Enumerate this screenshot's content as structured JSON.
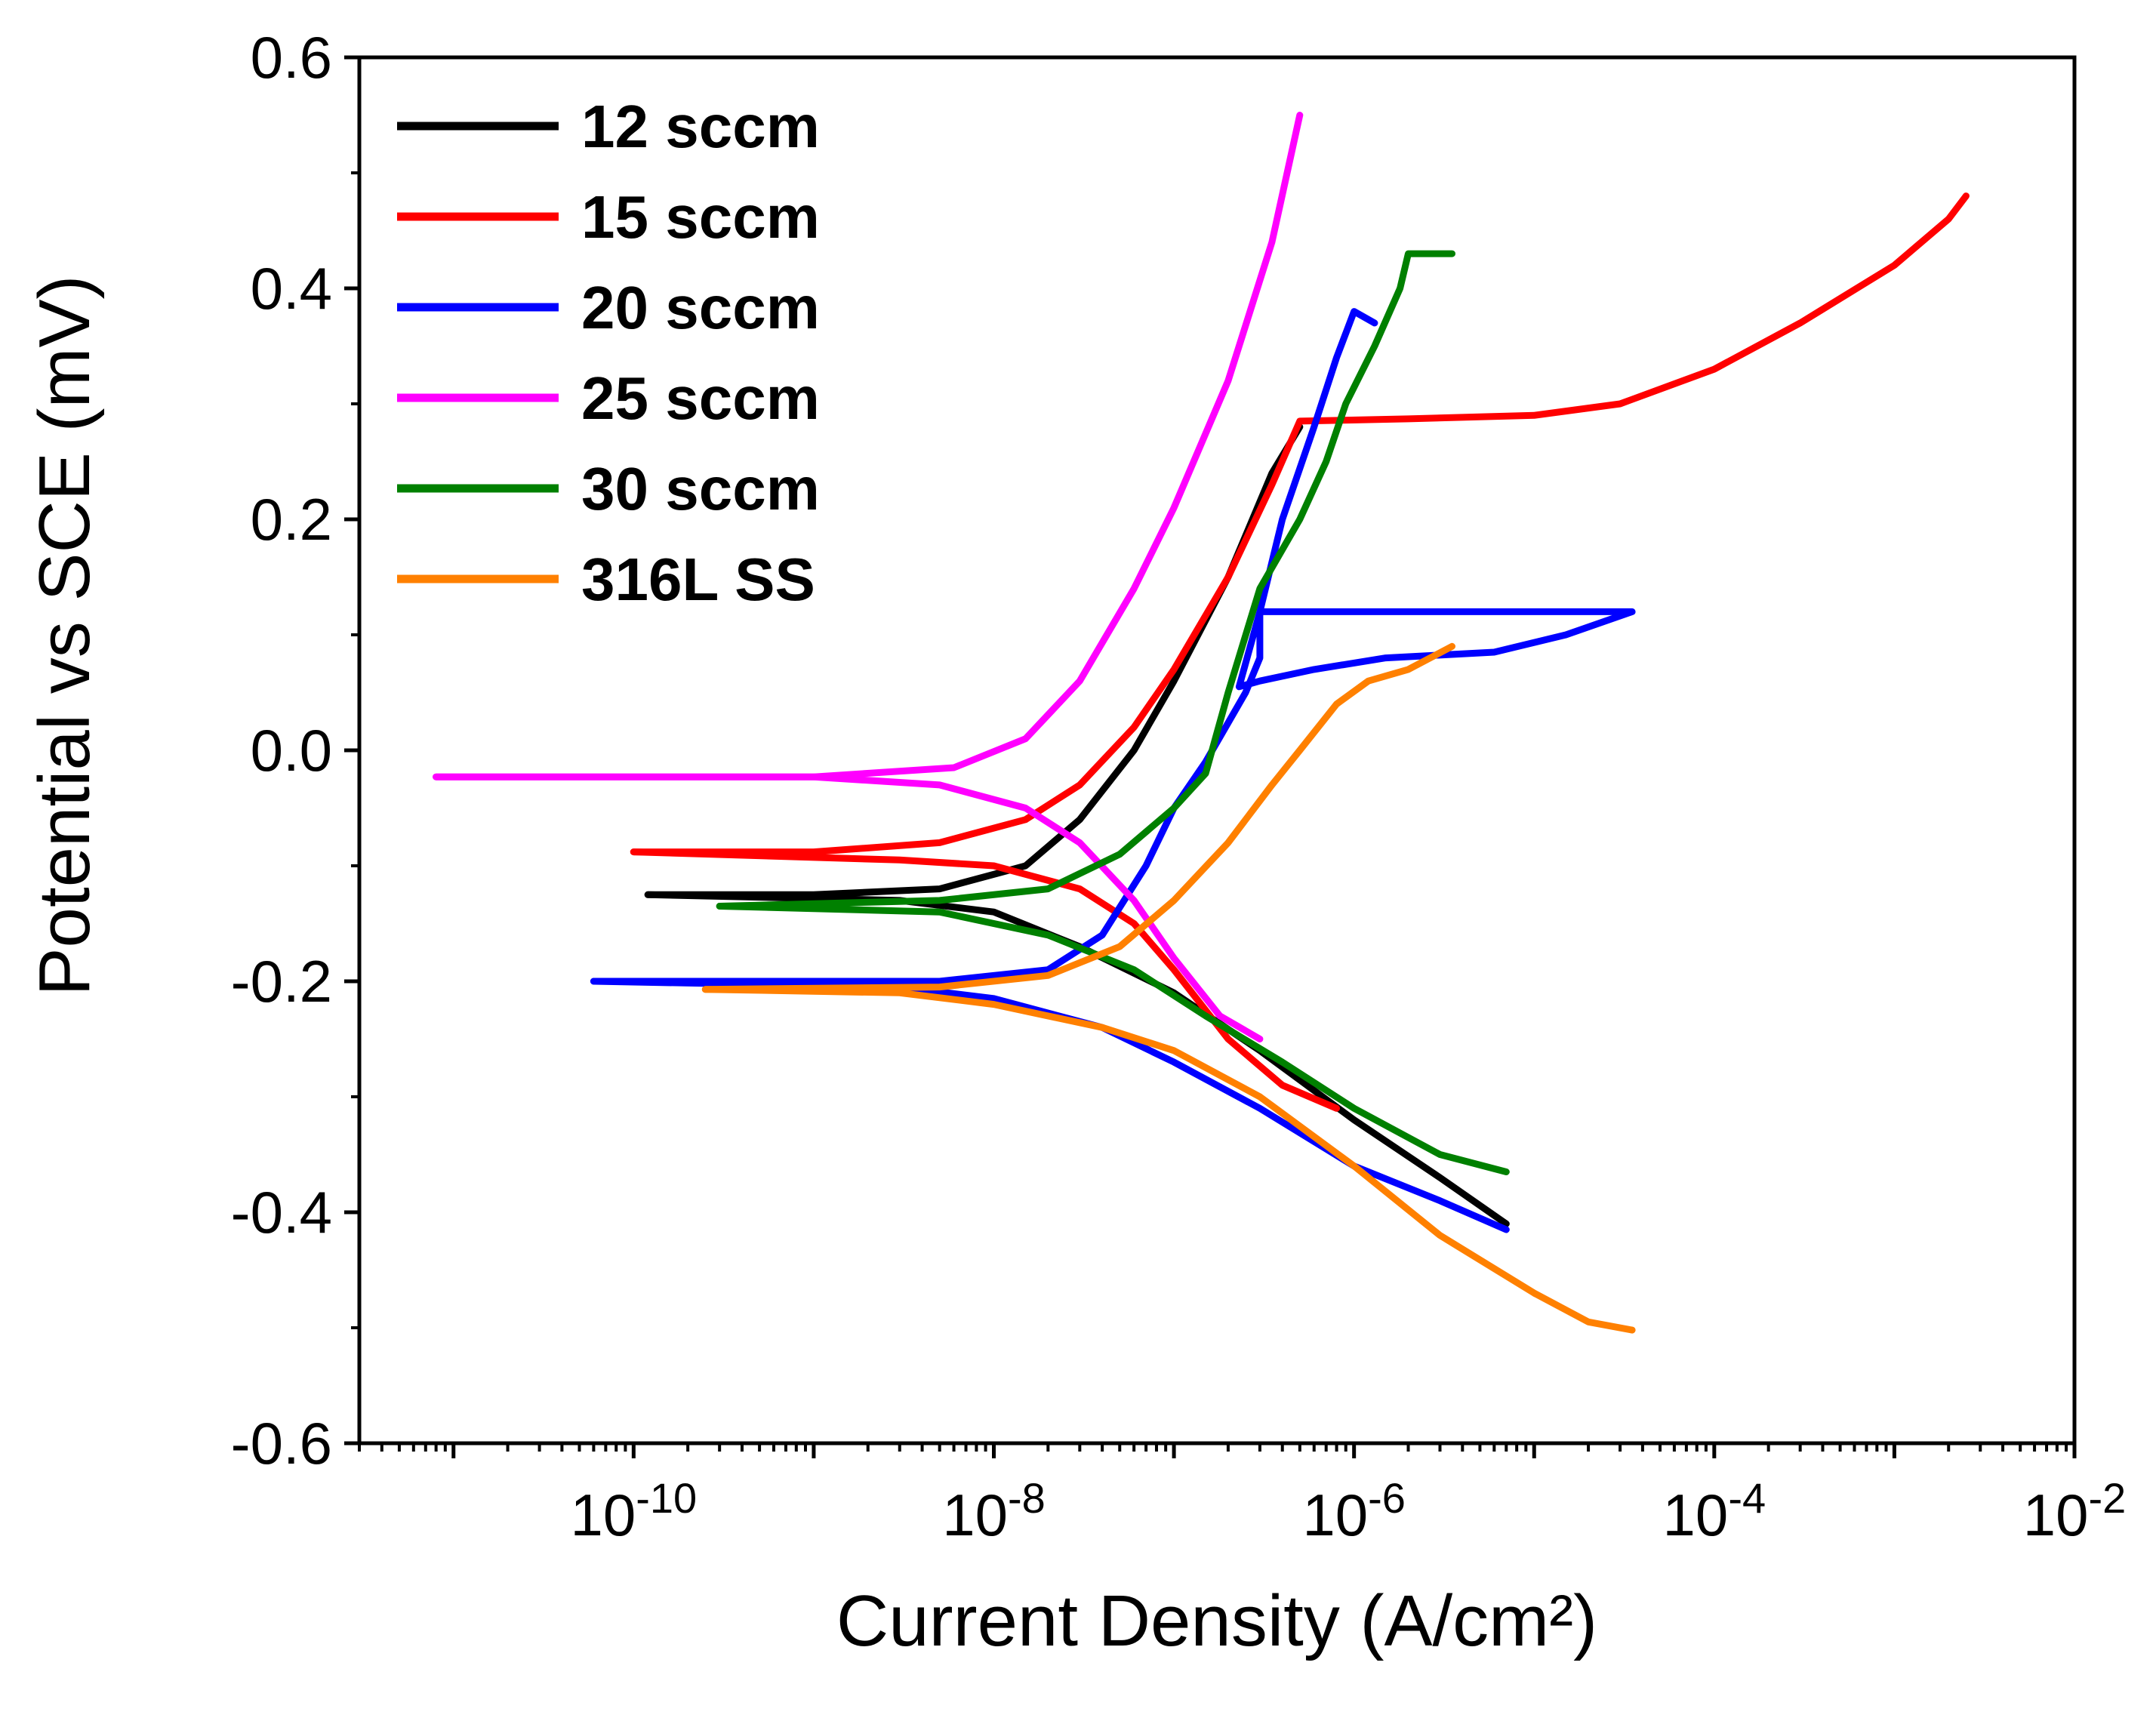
{
  "chart_data": {
    "type": "line",
    "title": "",
    "xlabel": "Current Density (A/cm²)",
    "ylabel": "Potential vs SCE (mV)",
    "xscale": "log",
    "xlim": [
      3e-12,
      0.01
    ],
    "ylim": [
      -0.6,
      0.6
    ],
    "y_ticks": [
      "0.6",
      "0.4",
      "0.2",
      "0.0",
      "-0.2",
      "-0.4",
      "-0.6"
    ],
    "x_ticks": [
      {
        "base": "10",
        "exp": "-10",
        "value": 1e-10
      },
      {
        "base": "10",
        "exp": "-8",
        "value": 1e-08
      },
      {
        "base": "10",
        "exp": "-6",
        "value": 1e-06
      },
      {
        "base": "10",
        "exp": "-4",
        "value": 0.0001
      },
      {
        "base": "10",
        "exp": "-2",
        "value": 0.01
      }
    ],
    "legend_position": "top-left",
    "series": [
      {
        "name": "12 sccm",
        "color": "#000000",
        "points": [
          [
            1.2e-10,
            -0.125
          ],
          [
            1e-09,
            -0.125
          ],
          [
            5e-09,
            -0.12
          ],
          [
            1.5e-08,
            -0.1
          ],
          [
            3e-08,
            -0.06
          ],
          [
            6e-08,
            0.0
          ],
          [
            1e-07,
            0.06
          ],
          [
            2e-07,
            0.15
          ],
          [
            3.5e-07,
            0.24
          ],
          [
            5e-07,
            0.28
          ]
        ],
        "points_cathodic": [
          [
            1.2e-10,
            -0.125
          ],
          [
            3e-09,
            -0.13
          ],
          [
            1e-08,
            -0.14
          ],
          [
            3e-08,
            -0.17
          ],
          [
            1e-07,
            -0.21
          ],
          [
            3e-07,
            -0.26
          ],
          [
            1e-06,
            -0.32
          ],
          [
            3e-06,
            -0.37
          ],
          [
            7e-06,
            -0.41
          ]
        ]
      },
      {
        "name": "15 sccm",
        "color": "#ff0000",
        "points": [
          [
            1e-10,
            -0.088
          ],
          [
            1e-09,
            -0.088
          ],
          [
            5e-09,
            -0.08
          ],
          [
            1.5e-08,
            -0.06
          ],
          [
            3e-08,
            -0.03
          ],
          [
            6e-08,
            0.02
          ],
          [
            1e-07,
            0.07
          ],
          [
            2e-07,
            0.15
          ],
          [
            3.5e-07,
            0.23
          ],
          [
            5e-07,
            0.285
          ],
          [
            2e-06,
            0.287
          ],
          [
            1e-05,
            0.29
          ],
          [
            3e-05,
            0.3
          ],
          [
            0.0001,
            0.33
          ],
          [
            0.0003,
            0.37
          ],
          [
            0.001,
            0.42
          ],
          [
            0.002,
            0.46
          ],
          [
            0.0025,
            0.48
          ]
        ],
        "points_cathodic": [
          [
            1e-10,
            -0.088
          ],
          [
            3e-09,
            -0.095
          ],
          [
            1e-08,
            -0.1
          ],
          [
            3e-08,
            -0.12
          ],
          [
            6e-08,
            -0.15
          ],
          [
            1e-07,
            -0.19
          ],
          [
            2e-07,
            -0.25
          ],
          [
            4e-07,
            -0.29
          ],
          [
            8e-07,
            -0.31
          ]
        ]
      },
      {
        "name": "20 sccm",
        "color": "#0000ff",
        "points": [
          [
            6e-11,
            -0.2
          ],
          [
            5e-09,
            -0.2
          ],
          [
            2e-08,
            -0.19
          ],
          [
            4e-08,
            -0.16
          ],
          [
            7e-08,
            -0.1
          ],
          [
            1e-07,
            -0.05
          ],
          [
            1.5e-07,
            -0.01
          ],
          [
            2.5e-07,
            0.05
          ],
          [
            3e-07,
            0.08
          ],
          [
            3e-07,
            0.12
          ],
          [
            1e-06,
            0.12
          ],
          [
            5e-06,
            0.12
          ],
          [
            1.5e-05,
            0.12
          ],
          [
            3.5e-05,
            0.12
          ],
          [
            1.5e-05,
            0.1
          ],
          [
            6e-06,
            0.085
          ],
          [
            1.5e-06,
            0.08
          ],
          [
            6e-07,
            0.07
          ],
          [
            3e-07,
            0.06
          ],
          [
            2.3e-07,
            0.055
          ],
          [
            3e-07,
            0.12
          ],
          [
            4e-07,
            0.2
          ],
          [
            6e-07,
            0.28
          ],
          [
            8e-07,
            0.34
          ],
          [
            1e-06,
            0.38
          ],
          [
            1.3e-06,
            0.37
          ]
        ],
        "points_cathodic": [
          [
            6e-11,
            -0.2
          ],
          [
            3e-09,
            -0.205
          ],
          [
            1e-08,
            -0.215
          ],
          [
            4e-08,
            -0.24
          ],
          [
            1e-07,
            -0.27
          ],
          [
            3e-07,
            -0.31
          ],
          [
            1e-06,
            -0.36
          ],
          [
            3e-06,
            -0.39
          ],
          [
            7e-06,
            -0.415
          ]
        ]
      },
      {
        "name": "25 sccm",
        "color": "#ff00ff",
        "points": [
          [
            8e-12,
            -0.023
          ],
          [
            1e-09,
            -0.023
          ],
          [
            6e-09,
            -0.015
          ],
          [
            1.5e-08,
            0.01
          ],
          [
            3e-08,
            0.06
          ],
          [
            6e-08,
            0.14
          ],
          [
            1e-07,
            0.21
          ],
          [
            2e-07,
            0.32
          ],
          [
            3.5e-07,
            0.44
          ],
          [
            5e-07,
            0.55
          ]
        ],
        "points_cathodic": [
          [
            8e-12,
            -0.023
          ],
          [
            1e-09,
            -0.023
          ],
          [
            5e-09,
            -0.03
          ],
          [
            1.5e-08,
            -0.05
          ],
          [
            3e-08,
            -0.08
          ],
          [
            6e-08,
            -0.13
          ],
          [
            1e-07,
            -0.18
          ],
          [
            1.8e-07,
            -0.23
          ],
          [
            3e-07,
            -0.25
          ]
        ]
      },
      {
        "name": "30 sccm",
        "color": "#008000",
        "points": [
          [
            3e-10,
            -0.135
          ],
          [
            5e-09,
            -0.13
          ],
          [
            2e-08,
            -0.12
          ],
          [
            5e-08,
            -0.09
          ],
          [
            1e-07,
            -0.05
          ],
          [
            1.5e-07,
            -0.02
          ],
          [
            2e-07,
            0.05
          ],
          [
            3e-07,
            0.14
          ],
          [
            5e-07,
            0.2
          ],
          [
            7e-07,
            0.25
          ],
          [
            9e-07,
            0.3
          ],
          [
            1.3e-06,
            0.35
          ],
          [
            1.8e-06,
            0.4
          ],
          [
            2e-06,
            0.43
          ],
          [
            3.5e-06,
            0.43
          ]
        ],
        "points_cathodic": [
          [
            3e-10,
            -0.135
          ],
          [
            5e-09,
            -0.14
          ],
          [
            2e-08,
            -0.16
          ],
          [
            6e-08,
            -0.19
          ],
          [
            1.5e-07,
            -0.23
          ],
          [
            4e-07,
            -0.27
          ],
          [
            1e-06,
            -0.31
          ],
          [
            3e-06,
            -0.35
          ],
          [
            7e-06,
            -0.365
          ]
        ]
      },
      {
        "name": "316L SS",
        "color": "#ff8000",
        "points": [
          [
            2.5e-10,
            -0.207
          ],
          [
            5e-09,
            -0.205
          ],
          [
            2e-08,
            -0.195
          ],
          [
            5e-08,
            -0.17
          ],
          [
            1e-07,
            -0.13
          ],
          [
            2e-07,
            -0.08
          ],
          [
            3.5e-07,
            -0.03
          ],
          [
            5e-07,
            0.0
          ],
          [
            8e-07,
            0.04
          ],
          [
            1.2e-06,
            0.06
          ],
          [
            2e-06,
            0.07
          ],
          [
            3.5e-06,
            0.09
          ]
        ],
        "points_cathodic": [
          [
            2.5e-10,
            -0.207
          ],
          [
            3e-09,
            -0.21
          ],
          [
            1e-08,
            -0.22
          ],
          [
            4e-08,
            -0.24
          ],
          [
            1e-07,
            -0.26
          ],
          [
            3e-07,
            -0.3
          ],
          [
            1e-06,
            -0.36
          ],
          [
            3e-06,
            -0.42
          ],
          [
            1e-05,
            -0.47
          ],
          [
            2e-05,
            -0.495
          ],
          [
            3.5e-05,
            -0.502
          ]
        ]
      }
    ]
  }
}
